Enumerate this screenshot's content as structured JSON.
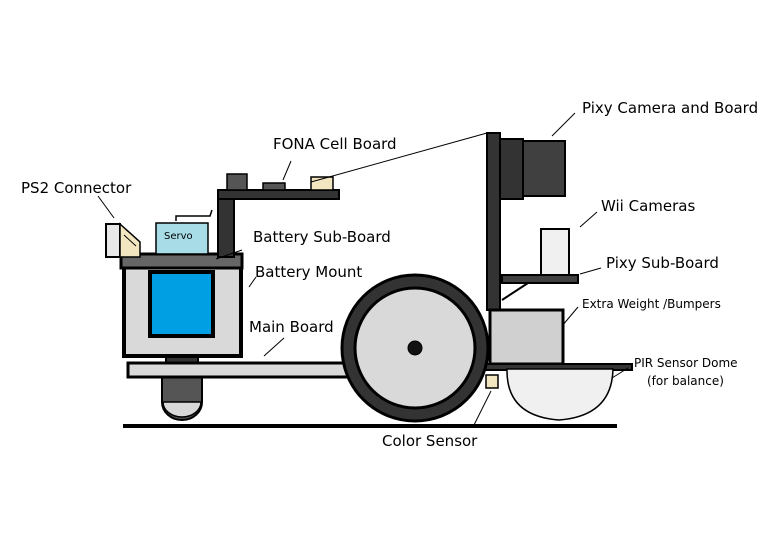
{
  "labels": {
    "pixy_camera": "Pixy Camera and Board",
    "fona": "FONA Cell Board",
    "ps2": "PS2 Connector",
    "wii": "Wii Cameras",
    "battery_sub_board": "Battery Sub-Board",
    "battery_mount": "Battery Mount",
    "pixy_sub_board": "Pixy Sub-Board",
    "extra_weight": "Extra Weight /Bumpers",
    "main_board": "Main Board",
    "pir_line1": "PIR Sensor Dome",
    "pir_line2": "(for balance)",
    "color_sensor": "Color Sensor",
    "servo": "Servo"
  },
  "colors": {
    "outline": "#000000",
    "body_fill": "#d9d9d9",
    "battery_blue": "#009fe3",
    "servo_fill": "#a8dde8",
    "dark_fill": "#404040",
    "board_dark": "#333333",
    "tan": "#f2e6c0",
    "wheel_outer": "#333333",
    "wheel_inner": "#d9d9d9",
    "dome_fill": "#f0f0f0"
  }
}
